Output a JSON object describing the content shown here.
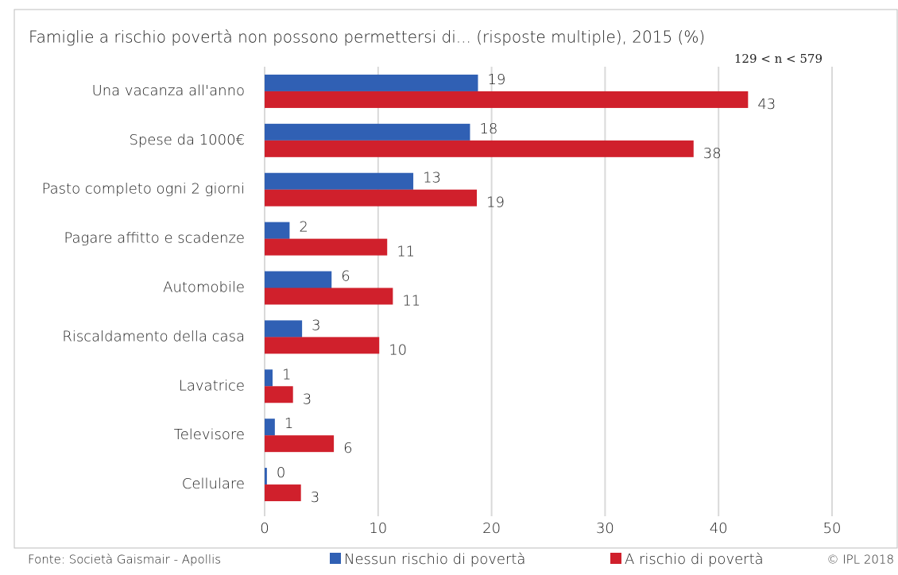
{
  "chart_data": {
    "type": "hbar",
    "title": "Famiglie a rischio povertà non possono permettersi di... (risposte multiple), 2015 (%)",
    "note": "129 < n < 579",
    "categories": [
      "Una vacanza all'anno",
      "Spese da 1000€",
      "Pasto completo ogni 2 giorni",
      "Pagare affitto e scadenze",
      "Automobile",
      "Riscaldamento della casa",
      "Lavatrice",
      "Televisore",
      "Cellulare"
    ],
    "series": [
      {
        "name": "Nessun rischio di povertà",
        "color": "#3060b4",
        "values": [
          18.8,
          18.1,
          13.1,
          2.2,
          5.9,
          3.3,
          0.7,
          0.9,
          0.2
        ],
        "value_labels": [
          "19",
          "18",
          "13",
          "2",
          "6",
          "3",
          "1",
          "1",
          "0"
        ]
      },
      {
        "name": "A rischio di povertà",
        "color": "#d0202c",
        "values": [
          42.6,
          37.8,
          18.7,
          10.8,
          11.3,
          10.1,
          2.5,
          6.1,
          3.2
        ],
        "value_labels": [
          "43",
          "38",
          "19",
          "11",
          "11",
          "10",
          "3",
          "6",
          "3"
        ]
      }
    ],
    "xlim": [
      0,
      50
    ],
    "xticks": [
      0,
      10,
      20,
      30,
      40,
      50
    ],
    "grid": true,
    "legend": "bottom",
    "source": "Fonte: Società Gaismair - Apollis",
    "copyright": "© IPL 2018"
  }
}
